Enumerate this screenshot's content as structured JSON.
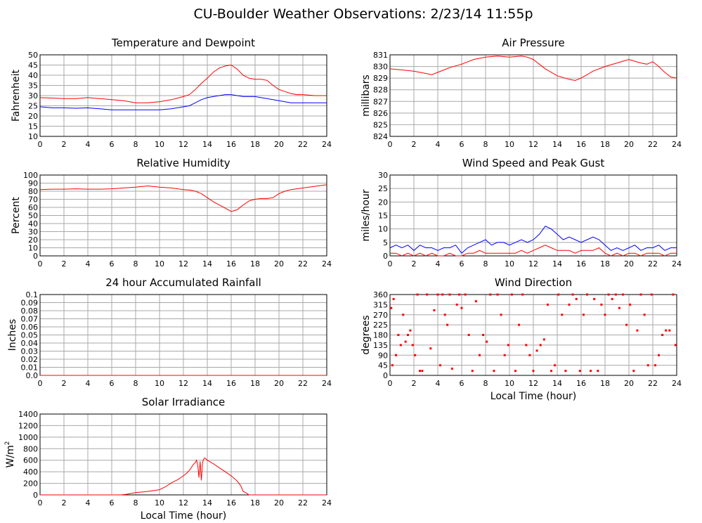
{
  "page_title": "CU-Boulder Weather Observations: 2/23/14 11:55p",
  "colors": {
    "red": "#ff0000",
    "blue": "#0000ff",
    "grid": "#a8a8a8"
  },
  "chart_data": [
    {
      "id": "temperature",
      "type": "line",
      "title": "Temperature and Dewpoint",
      "xlabel": "",
      "ylabel": "Fahrenheit",
      "xlim": [
        0,
        24
      ],
      "ylim": [
        10,
        50
      ],
      "xticks": [
        0,
        2,
        4,
        6,
        8,
        10,
        12,
        14,
        16,
        18,
        20,
        22,
        24
      ],
      "yticks": [
        10,
        15,
        20,
        25,
        30,
        35,
        40,
        45,
        50
      ],
      "ytick_labels": [
        "10",
        "15",
        "20",
        "25",
        "30",
        "35",
        "40",
        "45",
        "50"
      ],
      "series": [
        {
          "color": "#ff0000",
          "x": [
            0,
            1,
            2,
            3,
            4,
            5,
            6,
            7,
            8,
            9,
            10,
            11,
            12,
            12.5,
            13,
            13.5,
            14,
            14.5,
            15,
            15.5,
            16,
            16.5,
            17,
            17.5,
            18,
            18.5,
            19,
            19.5,
            20,
            20.5,
            21,
            21.5,
            22,
            23,
            24
          ],
          "y": [
            29,
            28.8,
            28.5,
            28.5,
            29,
            28.5,
            28,
            27.5,
            26.5,
            26.5,
            27,
            28,
            29.5,
            30.5,
            33,
            36,
            38.5,
            41.5,
            43.5,
            44.5,
            45,
            43,
            40,
            38.5,
            38,
            38,
            37.5,
            35,
            33,
            32,
            31,
            30.5,
            30.5,
            30,
            30
          ]
        },
        {
          "color": "#0000ff",
          "x": [
            0,
            1,
            2,
            3,
            4,
            5,
            6,
            7,
            8,
            9,
            10,
            11,
            12,
            12.5,
            13,
            13.5,
            14,
            14.5,
            15,
            15.5,
            16,
            16.5,
            17,
            17.5,
            18,
            18.5,
            19,
            19.5,
            20,
            20.5,
            21,
            21.5,
            22,
            23,
            24
          ],
          "y": [
            24.5,
            24,
            24,
            23.8,
            24,
            23.5,
            23,
            23,
            23,
            23,
            23,
            23.5,
            24.5,
            25,
            26.5,
            28,
            29,
            29.5,
            30,
            30.5,
            30.5,
            30,
            29.5,
            29.5,
            29.5,
            29,
            28.5,
            28,
            27.5,
            27,
            26.5,
            26.5,
            26.5,
            26.5,
            26.5
          ]
        }
      ]
    },
    {
      "id": "pressure",
      "type": "line",
      "title": "Air Pressure",
      "xlabel": "",
      "ylabel": "millibars",
      "xlim": [
        0,
        24
      ],
      "ylim": [
        824,
        831
      ],
      "xticks": [
        0,
        2,
        4,
        6,
        8,
        10,
        12,
        14,
        16,
        18,
        20,
        22,
        24
      ],
      "yticks": [
        824,
        825,
        826,
        827,
        828,
        829,
        830,
        831
      ],
      "ytick_labels": [
        "824",
        "825",
        "826",
        "827",
        "828",
        "829",
        "830",
        "831"
      ],
      "series": [
        {
          "color": "#ff0000",
          "x": [
            0,
            1,
            2,
            3,
            3.5,
            4,
            5,
            6,
            7,
            8,
            9,
            10,
            11,
            11.5,
            12,
            12.5,
            13,
            14,
            15,
            15.5,
            16,
            16.5,
            17,
            18,
            19,
            20,
            21,
            21.5,
            22,
            22.5,
            23,
            23.5,
            24
          ],
          "y": [
            829.8,
            829.7,
            829.6,
            829.4,
            829.3,
            829.5,
            829.9,
            830.2,
            830.6,
            830.8,
            830.9,
            830.8,
            830.9,
            830.8,
            830.6,
            830.2,
            829.8,
            829.2,
            828.9,
            828.8,
            829.0,
            829.3,
            829.6,
            830.0,
            830.3,
            830.6,
            830.3,
            830.2,
            830.4,
            830.0,
            829.5,
            829.1,
            829.0
          ]
        }
      ]
    },
    {
      "id": "humidity",
      "type": "line",
      "title": "Relative Humidity",
      "xlabel": "",
      "ylabel": "Percent",
      "xlim": [
        0,
        24
      ],
      "ylim": [
        0,
        100
      ],
      "xticks": [
        0,
        2,
        4,
        6,
        8,
        10,
        12,
        14,
        16,
        18,
        20,
        22,
        24
      ],
      "yticks": [
        0,
        10,
        20,
        30,
        40,
        50,
        60,
        70,
        80,
        90,
        100
      ],
      "ytick_labels": [
        "0",
        "10",
        "20",
        "30",
        "40",
        "50",
        "60",
        "70",
        "80",
        "90",
        "100"
      ],
      "series": [
        {
          "color": "#ff0000",
          "x": [
            0,
            1,
            2,
            3,
            4,
            5,
            6,
            7,
            8,
            9,
            10,
            11,
            12,
            12.5,
            13,
            13.5,
            14,
            14.5,
            15,
            15.5,
            16,
            16.5,
            17,
            17.5,
            18,
            18.5,
            19,
            19.5,
            20,
            20.5,
            21,
            22,
            23,
            24
          ],
          "y": [
            82,
            82.5,
            82.5,
            83,
            82.5,
            82.5,
            83,
            84,
            85,
            86.5,
            85,
            84,
            82,
            81.5,
            80,
            77,
            72,
            67,
            63,
            59,
            55,
            57,
            63,
            68,
            70,
            71,
            71,
            72,
            77,
            80,
            82,
            84,
            86,
            88
          ]
        }
      ]
    },
    {
      "id": "wind",
      "type": "line",
      "title": "Wind Speed and Peak Gust",
      "xlabel": "",
      "ylabel": "miles/hour",
      "xlim": [
        0,
        24
      ],
      "ylim": [
        0,
        30
      ],
      "xticks": [
        0,
        2,
        4,
        6,
        8,
        10,
        12,
        14,
        16,
        18,
        20,
        22,
        24
      ],
      "yticks": [
        0,
        5,
        10,
        15,
        20,
        25,
        30
      ],
      "ytick_labels": [
        "0",
        "5",
        "10",
        "15",
        "20",
        "25",
        "30"
      ],
      "series": [
        {
          "color": "#0000ff",
          "x": [
            0,
            0.5,
            1,
            1.5,
            2,
            2.5,
            3,
            3.5,
            4,
            4.5,
            5,
            5.5,
            6,
            6.5,
            7,
            7.5,
            8,
            8.5,
            9,
            9.5,
            10,
            10.5,
            11,
            11.5,
            12,
            12.5,
            13,
            13.5,
            14,
            14.5,
            15,
            15.5,
            16,
            16.5,
            17,
            17.5,
            18,
            18.5,
            19,
            19.5,
            20,
            20.5,
            21,
            21.5,
            22,
            22.5,
            23,
            23.5,
            24
          ],
          "y": [
            3,
            4,
            3,
            4,
            2,
            4,
            3,
            3,
            2,
            3,
            3,
            4,
            1,
            3,
            4,
            5,
            6,
            4,
            5,
            5,
            4,
            5,
            6,
            5,
            6,
            8,
            11,
            10,
            8,
            6,
            7,
            6,
            5,
            6,
            7,
            6,
            4,
            2,
            3,
            2,
            3,
            4,
            2,
            3,
            3,
            4,
            2,
            3,
            3
          ]
        },
        {
          "color": "#ff0000",
          "x": [
            0,
            0.5,
            1,
            1.5,
            2,
            2.5,
            3,
            3.5,
            4,
            4.5,
            5,
            5.5,
            6,
            6.5,
            7,
            7.5,
            8,
            8.5,
            9,
            9.5,
            10,
            10.5,
            11,
            11.5,
            12,
            12.5,
            13,
            13.5,
            14,
            14.5,
            15,
            15.5,
            16,
            16.5,
            17,
            17.5,
            18,
            18.5,
            19,
            19.5,
            20,
            20.5,
            21,
            21.5,
            22,
            22.5,
            23,
            23.5,
            24
          ],
          "y": [
            1,
            1,
            0,
            1,
            0,
            1,
            0,
            1,
            0,
            0,
            1,
            0,
            0,
            1,
            1,
            2,
            1,
            1,
            1,
            1,
            1,
            1,
            2,
            1,
            2,
            3,
            4,
            3,
            2,
            2,
            2,
            1,
            2,
            2,
            2,
            3,
            1,
            0,
            1,
            0,
            1,
            1,
            0,
            1,
            1,
            1,
            0,
            1,
            1
          ]
        }
      ]
    },
    {
      "id": "rainfall",
      "type": "line",
      "title": "24 hour Accumulated Rainfall",
      "xlabel": "",
      "ylabel": "Inches",
      "xlim": [
        0,
        24
      ],
      "ylim": [
        0,
        0.1
      ],
      "xticks": [
        0,
        2,
        4,
        6,
        8,
        10,
        12,
        14,
        16,
        18,
        20,
        22,
        24
      ],
      "yticks": [
        0,
        0.01,
        0.02,
        0.03,
        0.04,
        0.05,
        0.06,
        0.07,
        0.08,
        0.09,
        0.1
      ],
      "ytick_labels": [
        "0.0",
        "0.01",
        "0.02",
        "0.03",
        "0.04",
        "0.05",
        "0.06",
        "0.07",
        "0.08",
        "0.09",
        "0.1"
      ],
      "series": [
        {
          "color": "#ff0000",
          "x": [
            0,
            24
          ],
          "y": [
            0,
            0
          ]
        }
      ]
    },
    {
      "id": "winddir",
      "type": "scatter",
      "title": "Wind Direction",
      "xlabel": "Local Time (hour)",
      "ylabel": "degrees",
      "xlim": [
        0,
        24
      ],
      "ylim": [
        0,
        360
      ],
      "xticks": [
        0,
        2,
        4,
        6,
        8,
        10,
        12,
        14,
        16,
        18,
        20,
        22,
        24
      ],
      "yticks": [
        0,
        45,
        90,
        135,
        180,
        225,
        270,
        315,
        360
      ],
      "ytick_labels": [
        "0",
        "45",
        "90",
        "135",
        "180",
        "225",
        "270",
        "315",
        "360"
      ],
      "series": [
        {
          "color": "#ff0000",
          "x": [
            0.1,
            0.2,
            0.3,
            0.5,
            0.7,
            0.9,
            1.1,
            1.3,
            1.5,
            1.7,
            1.9,
            2.1,
            2.3,
            2.5,
            2.7,
            3.1,
            3.4,
            3.7,
            4.0,
            4.2,
            4.4,
            4.6,
            4.8,
            5.0,
            5.2,
            5.6,
            5.8,
            6.0,
            6.3,
            6.6,
            6.9,
            7.2,
            7.5,
            7.8,
            8.1,
            8.4,
            8.7,
            9.0,
            9.3,
            9.6,
            9.9,
            10.2,
            10.5,
            10.8,
            11.1,
            11.4,
            11.7,
            12.0,
            12.3,
            12.6,
            12.9,
            13.2,
            13.5,
            13.8,
            14.1,
            14.4,
            14.7,
            15.0,
            15.3,
            15.6,
            15.9,
            16.2,
            16.5,
            16.8,
            17.1,
            17.4,
            17.7,
            18.0,
            18.3,
            18.6,
            18.9,
            19.2,
            19.5,
            19.8,
            20.1,
            20.4,
            20.7,
            21.0,
            21.3,
            21.6,
            21.9,
            22.2,
            22.5,
            22.8,
            23.1,
            23.4,
            23.7,
            23.9
          ],
          "y": [
            300,
            45,
            340,
            90,
            180,
            135,
            270,
            150,
            180,
            200,
            135,
            90,
            360,
            20,
            20,
            360,
            120,
            290,
            360,
            45,
            360,
            270,
            225,
            360,
            30,
            315,
            360,
            300,
            360,
            180,
            20,
            330,
            90,
            180,
            150,
            360,
            20,
            360,
            270,
            90,
            135,
            360,
            20,
            225,
            360,
            135,
            90,
            20,
            110,
            135,
            160,
            315,
            20,
            45,
            360,
            270,
            20,
            315,
            360,
            340,
            20,
            270,
            360,
            20,
            340,
            20,
            315,
            270,
            360,
            340,
            360,
            300,
            360,
            225,
            315,
            20,
            200,
            360,
            270,
            45,
            360,
            45,
            90,
            180,
            200,
            200,
            360,
            135
          ]
        }
      ]
    },
    {
      "id": "solar",
      "type": "line",
      "title": "Solar Irradiance",
      "xlabel": "Local Time (hour)",
      "ylabel": "W/m",
      "ylabel_sup": "2",
      "xlim": [
        0,
        24
      ],
      "ylim": [
        0,
        1400
      ],
      "xticks": [
        0,
        2,
        4,
        6,
        8,
        10,
        12,
        14,
        16,
        18,
        20,
        22,
        24
      ],
      "yticks": [
        0,
        200,
        400,
        600,
        800,
        1000,
        1200,
        1400
      ],
      "ytick_labels": [
        "0",
        "200",
        "400",
        "600",
        "800",
        "1000",
        "1200",
        "1400"
      ],
      "series": [
        {
          "color": "#ff0000",
          "x": [
            0,
            6.8,
            7.2,
            8,
            9,
            10,
            10.5,
            11,
            11.5,
            12,
            12.3,
            12.6,
            12.8,
            13,
            13.1,
            13.2,
            13.3,
            13.4,
            13.5,
            13.6,
            13.7,
            13.8,
            13.9,
            14,
            14.5,
            15,
            15.5,
            16,
            16.5,
            16.8,
            17,
            17.2,
            17.5,
            18,
            24
          ],
          "y": [
            0,
            0,
            10,
            40,
            60,
            90,
            140,
            210,
            260,
            330,
            380,
            450,
            520,
            560,
            600,
            520,
            300,
            580,
            250,
            560,
            620,
            640,
            620,
            600,
            540,
            470,
            400,
            330,
            240,
            160,
            60,
            40,
            0,
            0,
            0
          ]
        }
      ]
    }
  ]
}
